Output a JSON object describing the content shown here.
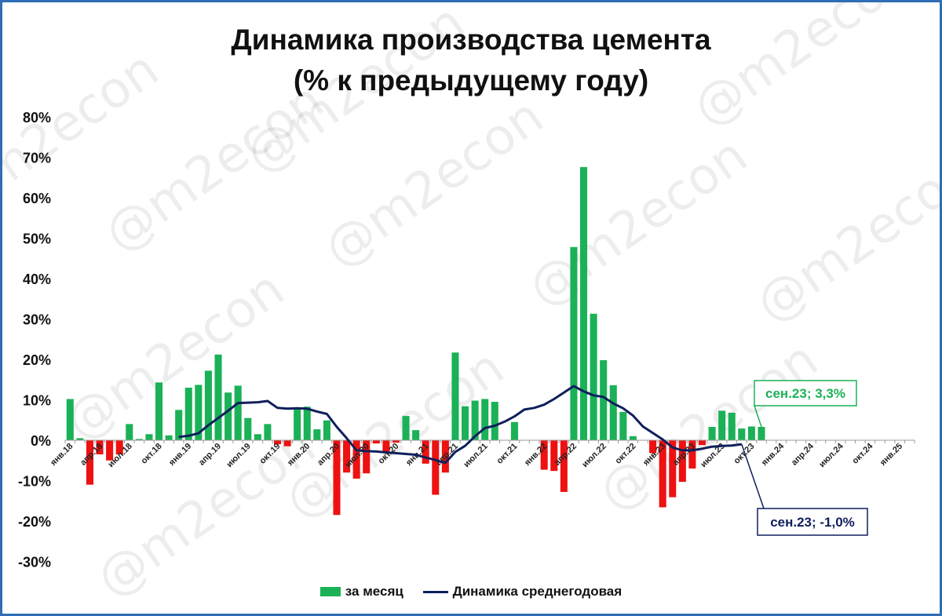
{
  "title_line1": "Динамика производства цемента",
  "title_line2": "(% к предыдущему году)",
  "watermark": "@m2econ",
  "chart_data": {
    "type": "bar",
    "title": "Динамика производства цемента (% к предыдущему году)",
    "ylim": [
      -30,
      80
    ],
    "yticks": [
      "80%",
      "70%",
      "60%",
      "50%",
      "40%",
      "30%",
      "20%",
      "10%",
      "0%",
      "-10%",
      "-20%",
      "-30%"
    ],
    "x_tick_labels": [
      "янв.18",
      "апр.18",
      "июл.18",
      "окт.18",
      "янв.19",
      "апр.19",
      "июл.19",
      "окт.19",
      "янв.20",
      "апр.20",
      "июл.20",
      "окт.20",
      "янв.21",
      "апр.21",
      "июл.21",
      "окт.21",
      "янв.22",
      "апр.22",
      "июл.22",
      "окт.22",
      "янв.23",
      "апр.23",
      "июл.23",
      "окт.23",
      "янв.24",
      "апр.24",
      "июл.24",
      "окт.24",
      "янв.25"
    ],
    "months_total": 86,
    "series": [
      {
        "name": "за месяц",
        "type": "bar",
        "color_pos": "#1bb157",
        "color_neg": "#ee1111",
        "values": [
          10.2,
          0.5,
          -11,
          -3.5,
          -5,
          -3.5,
          4,
          0.3,
          1.5,
          14.3,
          1.2,
          7.5,
          13,
          13.7,
          17.2,
          21.2,
          11.8,
          13.5,
          5.5,
          1.5,
          4,
          -1,
          -1.5,
          7.7,
          8.3,
          2.7,
          4.9,
          -18.5,
          -8,
          -9.5,
          -8.2,
          -0.8,
          -3,
          -0.6,
          6,
          2.5,
          -5.8,
          -13.5,
          -8,
          21.7,
          8.4,
          9.8,
          10.2,
          9.5,
          0,
          4.5,
          0,
          0,
          -7.3,
          -7.6,
          -12.8,
          47.8,
          67.6,
          31.3,
          19.8,
          13.6,
          7,
          1,
          0,
          -3.2,
          -16.6,
          -14.1,
          -10.3,
          -7,
          -1.2,
          3.3,
          7.3,
          6.8,
          2.9,
          3.4,
          3.3
        ]
      },
      {
        "name": "Динамика среднегодовая",
        "type": "line",
        "color": "#0f1f5c",
        "start_index": 11,
        "values": [
          0.8,
          1.1,
          1.7,
          3.7,
          5.5,
          7.3,
          9.2,
          9.3,
          9.4,
          9.7,
          8,
          7.8,
          7.9,
          7.8,
          7.1,
          6.5,
          3.3,
          0.5,
          -2.5,
          -2.7,
          -2.8,
          -3,
          -3.2,
          -3.4,
          -3.6,
          -4.3,
          -4.9,
          -5.6,
          -2.9,
          -1.4,
          1,
          3,
          3.6,
          4.6,
          5.9,
          7.6,
          8,
          8.8,
          10.2,
          11.8,
          13.4,
          12.1,
          11.1,
          10.7,
          9.1,
          7.9,
          6.1,
          3.4,
          1.8,
          0.2,
          -1.8,
          -2.5,
          -2.5,
          -2.1,
          -1.6,
          -1.4,
          -1.3,
          -1
        ]
      }
    ],
    "annotations": [
      {
        "text": "сен.23; 3,3%",
        "color": "#1bb157"
      },
      {
        "text": "сен.23; -1,0%",
        "color": "#0f1f5c"
      }
    ],
    "legend": [
      "за месяц",
      "Динамика среднегодовая"
    ],
    "legend_position": "bottom",
    "grid": false
  }
}
